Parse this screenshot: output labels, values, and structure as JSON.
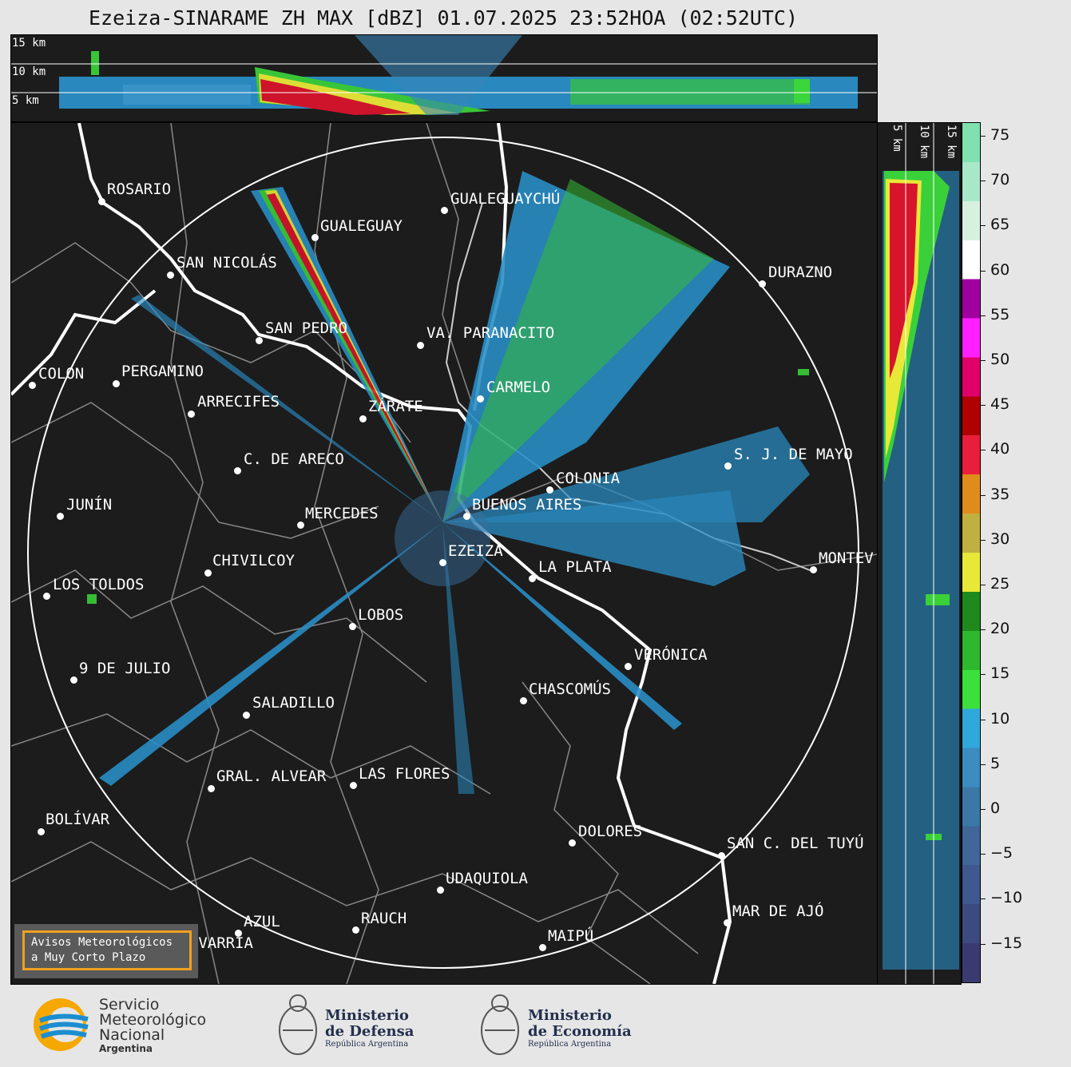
{
  "title": "Ezeiza-SINARAME ZH MAX [dBZ] 01.07.2025 23:52HOA (02:52UTC)",
  "altitude_labels": [
    "15 km",
    "10 km",
    "5 km"
  ],
  "side_altitude_labels": [
    "5 km",
    "10 km",
    "15 km"
  ],
  "cities": [
    {
      "name": "ROSARIO"
    },
    {
      "name": "GUALEGUAYCHÚ"
    },
    {
      "name": "GUALEGUAY"
    },
    {
      "name": "SAN NICOLÁS"
    },
    {
      "name": "DURAZNO"
    },
    {
      "name": "SAN PEDRO"
    },
    {
      "name": "VA. PARANACITO"
    },
    {
      "name": "COLON"
    },
    {
      "name": "PERGAMINO"
    },
    {
      "name": "CARMELO"
    },
    {
      "name": "ARRECIFES"
    },
    {
      "name": "ZÁRATE"
    },
    {
      "name": "S. J. DE MAYO"
    },
    {
      "name": "C. DE ARECO"
    },
    {
      "name": "COLONIA"
    },
    {
      "name": "JUNÍN"
    },
    {
      "name": "BUENOS AIRES"
    },
    {
      "name": "MERCEDES"
    },
    {
      "name": "EZEIZA"
    },
    {
      "name": "MONTEV"
    },
    {
      "name": "CHIVILCOY"
    },
    {
      "name": "LA PLATA"
    },
    {
      "name": "LOS TOLDOS"
    },
    {
      "name": "LOBOS"
    },
    {
      "name": "VERÓNICA"
    },
    {
      "name": "9 DE JULIO"
    },
    {
      "name": "CHASCOMÚS"
    },
    {
      "name": "SALADILLO"
    },
    {
      "name": "GRAL. ALVEAR"
    },
    {
      "name": "LAS FLORES"
    },
    {
      "name": "BOLÍVAR"
    },
    {
      "name": "DOLORES"
    },
    {
      "name": "SAN C. DEL TUYÚ"
    },
    {
      "name": "UDAQUIOLA"
    },
    {
      "name": "MAR DE AJÓ"
    },
    {
      "name": "AZUL"
    },
    {
      "name": "RAUCH"
    },
    {
      "name": "OLAVARRÍA"
    },
    {
      "name": "MAIPÚ"
    }
  ],
  "colorbar": {
    "ticks": [
      "75",
      "70",
      "65",
      "60",
      "55",
      "50",
      "45",
      "40",
      "35",
      "30",
      "25",
      "20",
      "15",
      "10",
      "5",
      "0",
      "−5",
      "−10",
      "−15"
    ],
    "colors": [
      "#3a3a70",
      "#3d4a80",
      "#3f5890",
      "#40669a",
      "#3b78a8",
      "#3b8cc0",
      "#2fa8dc",
      "#3ce03c",
      "#2eb82e",
      "#1e8a1e",
      "#e8e838",
      "#c0b040",
      "#e08c1c",
      "#e81e3c",
      "#b00000",
      "#e0006a",
      "#ff20ff",
      "#a000a0",
      "#ffffff",
      "#d8f0e0",
      "#a8e8c8",
      "#80e0b0"
    ]
  },
  "alert_box": {
    "line1": "Avisos Meteorológicos",
    "line2": "a Muy Corto Plazo"
  },
  "footer": {
    "smn_line1": "Servicio",
    "smn_line2": "Meteorológico",
    "smn_line3": "Nacional",
    "smn_line4": "Argentina",
    "def_line1": "Ministerio",
    "def_line2": "de Defensa",
    "def_line3": "República Argentina",
    "eco_line1": "Ministerio",
    "eco_line2": "de Economía",
    "eco_line3": "República Argentina"
  },
  "map_colors": {
    "background": "#1c1c1c",
    "rings": "#ffffff",
    "borders": "#888888"
  }
}
